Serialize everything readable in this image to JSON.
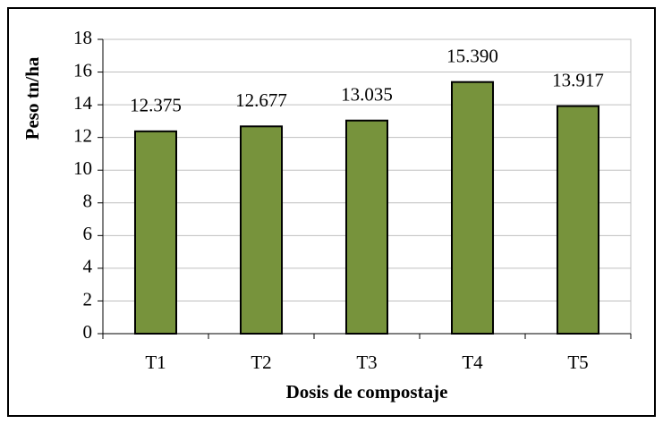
{
  "chart_data": {
    "type": "bar",
    "x_label": "Dosis de compostaje",
    "y_label": "Peso  tn/ha",
    "categories": [
      "T1",
      "T2",
      "T3",
      "T4",
      "T5"
    ],
    "values": [
      12.375,
      12.677,
      13.035,
      15.39,
      13.917
    ],
    "value_labels": [
      "12.375",
      "12.677",
      "13.035",
      "15.390",
      "13.917"
    ],
    "color": "#77933c",
    "ylim": [
      0,
      18
    ],
    "yticks": [
      0,
      2,
      4,
      6,
      8,
      10,
      12,
      14,
      16,
      18
    ],
    "grid": true
  }
}
